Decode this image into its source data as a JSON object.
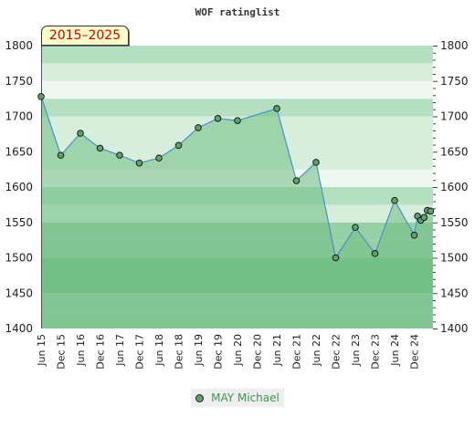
{
  "chart_data": {
    "type": "line",
    "title": "WOF ratinglist",
    "period_badge": "2015–2025",
    "x_ticks": [
      "Jun 15",
      "Dec 15",
      "Jun 16",
      "Dec 16",
      "Jun 17",
      "Dec 17",
      "Jun 18",
      "Dec 18",
      "Jun 19",
      "Dec 19",
      "Jun 20",
      "Dec 20",
      "Jun 21",
      "Dec 21",
      "Jun 22",
      "Dec 22",
      "Jun 23",
      "Dec 23",
      "Jun 24",
      "Dec 24"
    ],
    "y_ticks": [
      "1400",
      "1450",
      "1500",
      "1550",
      "1600",
      "1650",
      "1700",
      "1750",
      "1800"
    ],
    "ylim": [
      1400,
      1800
    ],
    "series": [
      {
        "name": "MAY Michael",
        "color": "#5fa36a",
        "points": [
          {
            "x": "Jun 15",
            "y": 1728
          },
          {
            "x": "Dec 15",
            "y": 1645
          },
          {
            "x": "Jun 16",
            "y": 1676
          },
          {
            "x": "Dec 16",
            "y": 1655
          },
          {
            "x": "Jun 17",
            "y": 1645
          },
          {
            "x": "Dec 17",
            "y": 1634
          },
          {
            "x": "Jun 18",
            "y": 1641
          },
          {
            "x": "Dec 18",
            "y": 1659
          },
          {
            "x": "Jun 19",
            "y": 1684
          },
          {
            "x": "Dec 19",
            "y": 1697
          },
          {
            "x": "Jun 20",
            "y": 1694
          },
          {
            "x": "Jun 21",
            "y": 1711
          },
          {
            "x": "Dec 21",
            "y": 1609
          },
          {
            "x": "Jun 22",
            "y": 1635
          },
          {
            "x": "Dec 22",
            "y": 1500
          },
          {
            "x": "Jun 23",
            "y": 1543
          },
          {
            "x": "Dec 23",
            "y": 1506
          },
          {
            "x": "Jun 24",
            "y": 1581
          },
          {
            "x": "Dec 24",
            "y": 1532
          },
          {
            "x": "Jan 25",
            "y": 1559
          },
          {
            "x": "Feb 25",
            "y": 1553
          },
          {
            "x": "Mar 25",
            "y": 1557
          },
          {
            "x": "Apr 25",
            "y": 1567
          },
          {
            "x": "May 25",
            "y": 1566
          }
        ]
      }
    ],
    "grid": false,
    "legend_position": "bottom",
    "colors": {
      "band_dark": "#79c28e",
      "band_mid": "#97d0a7",
      "band_light": "#b4dfc0",
      "band_pale": "#d8eedd",
      "band_lightest": "#eff7f1",
      "line": "#4a90c8",
      "area": "#6fbe84",
      "marker": "#5fa36a"
    }
  }
}
